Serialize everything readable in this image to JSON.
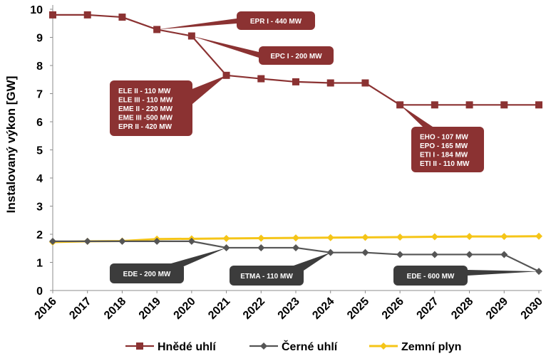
{
  "chart_data": {
    "type": "line",
    "x": [
      "2016",
      "2017",
      "2018",
      "2019",
      "2020",
      "2021",
      "2022",
      "2023",
      "2024",
      "2025",
      "2026",
      "2027",
      "2028",
      "2029",
      "2030"
    ],
    "ylabel": "Instalovaný výkon [GW]",
    "ylim": [
      0,
      10
    ],
    "yticks": [
      "0",
      "1",
      "2",
      "3",
      "4",
      "5",
      "6",
      "7",
      "8",
      "9",
      "10"
    ],
    "grid": false,
    "legend_position": "bottom",
    "series": [
      {
        "name": "Hnědé uhlí",
        "color": "#8b3232",
        "marker": "square",
        "values": [
          9.8,
          9.8,
          9.72,
          9.28,
          9.05,
          7.65,
          7.53,
          7.42,
          7.38,
          7.38,
          6.6,
          6.6,
          6.6,
          6.6,
          6.6
        ]
      },
      {
        "name": "Černé uhlí",
        "color": "#555555",
        "marker": "diamond",
        "values": [
          1.75,
          1.75,
          1.75,
          1.75,
          1.75,
          1.52,
          1.52,
          1.52,
          1.35,
          1.35,
          1.28,
          1.28,
          1.28,
          1.28,
          0.68
        ]
      },
      {
        "name": "Zemní plyn",
        "color": "#f5c518",
        "marker": "diamond",
        "values": [
          1.72,
          1.75,
          1.76,
          1.83,
          1.84,
          1.85,
          1.86,
          1.87,
          1.88,
          1.89,
          1.9,
          1.91,
          1.92,
          1.92,
          1.93
        ]
      }
    ],
    "annotations": [
      {
        "lines": [
          "EPR I - 440 MW"
        ],
        "series": 0,
        "x": "2019",
        "style": "brown"
      },
      {
        "lines": [
          "EPC I - 200 MW"
        ],
        "series": 0,
        "x": "2020",
        "style": "brown"
      },
      {
        "lines": [
          "ELE II  - 110 MW",
          "ELE III - 110 MW",
          "EME II  - 220 MW",
          "EME III -500 MW",
          "EPR II   - 420 MW"
        ],
        "series": 0,
        "x": "2021",
        "style": "brown"
      },
      {
        "lines": [
          "EHO - 107 MW",
          "EPO - 165 MW",
          "ETI I - 184 MW",
          "ETI II - 110 MW"
        ],
        "series": 0,
        "x": "2026",
        "style": "brown"
      },
      {
        "lines": [
          "EDE - 200 MW"
        ],
        "series": 1,
        "x": "2021",
        "style": "dark"
      },
      {
        "lines": [
          "ETMA - 110 MW"
        ],
        "series": 1,
        "x": "2024",
        "style": "dark"
      },
      {
        "lines": [
          "EDE - 600 MW"
        ],
        "series": 1,
        "x": "2030",
        "style": "dark"
      }
    ]
  }
}
